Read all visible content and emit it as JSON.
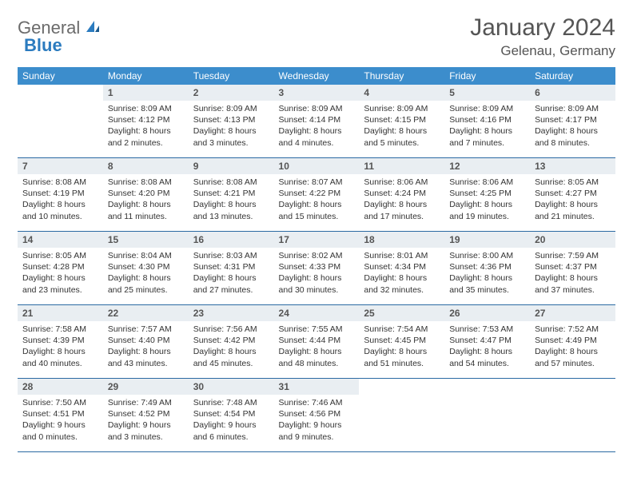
{
  "logo": {
    "general": "General",
    "blue": "Blue"
  },
  "title": "January 2024",
  "location": "Gelenau, Germany",
  "colors": {
    "header_bg": "#3c8dcc",
    "header_text": "#ffffff",
    "daynum_bg": "#e9eef2",
    "row_border": "#2b6aa3",
    "logo_gray": "#6b6b6b",
    "logo_blue": "#2b7bbf",
    "text": "#333333",
    "title_color": "#555555"
  },
  "weekdays": [
    "Sunday",
    "Monday",
    "Tuesday",
    "Wednesday",
    "Thursday",
    "Friday",
    "Saturday"
  ],
  "weeks": [
    [
      null,
      {
        "n": "1",
        "sr": "8:09 AM",
        "ss": "4:12 PM",
        "dl": "8 hours and 2 minutes."
      },
      {
        "n": "2",
        "sr": "8:09 AM",
        "ss": "4:13 PM",
        "dl": "8 hours and 3 minutes."
      },
      {
        "n": "3",
        "sr": "8:09 AM",
        "ss": "4:14 PM",
        "dl": "8 hours and 4 minutes."
      },
      {
        "n": "4",
        "sr": "8:09 AM",
        "ss": "4:15 PM",
        "dl": "8 hours and 5 minutes."
      },
      {
        "n": "5",
        "sr": "8:09 AM",
        "ss": "4:16 PM",
        "dl": "8 hours and 7 minutes."
      },
      {
        "n": "6",
        "sr": "8:09 AM",
        "ss": "4:17 PM",
        "dl": "8 hours and 8 minutes."
      }
    ],
    [
      {
        "n": "7",
        "sr": "8:08 AM",
        "ss": "4:19 PM",
        "dl": "8 hours and 10 minutes."
      },
      {
        "n": "8",
        "sr": "8:08 AM",
        "ss": "4:20 PM",
        "dl": "8 hours and 11 minutes."
      },
      {
        "n": "9",
        "sr": "8:08 AM",
        "ss": "4:21 PM",
        "dl": "8 hours and 13 minutes."
      },
      {
        "n": "10",
        "sr": "8:07 AM",
        "ss": "4:22 PM",
        "dl": "8 hours and 15 minutes."
      },
      {
        "n": "11",
        "sr": "8:06 AM",
        "ss": "4:24 PM",
        "dl": "8 hours and 17 minutes."
      },
      {
        "n": "12",
        "sr": "8:06 AM",
        "ss": "4:25 PM",
        "dl": "8 hours and 19 minutes."
      },
      {
        "n": "13",
        "sr": "8:05 AM",
        "ss": "4:27 PM",
        "dl": "8 hours and 21 minutes."
      }
    ],
    [
      {
        "n": "14",
        "sr": "8:05 AM",
        "ss": "4:28 PM",
        "dl": "8 hours and 23 minutes."
      },
      {
        "n": "15",
        "sr": "8:04 AM",
        "ss": "4:30 PM",
        "dl": "8 hours and 25 minutes."
      },
      {
        "n": "16",
        "sr": "8:03 AM",
        "ss": "4:31 PM",
        "dl": "8 hours and 27 minutes."
      },
      {
        "n": "17",
        "sr": "8:02 AM",
        "ss": "4:33 PM",
        "dl": "8 hours and 30 minutes."
      },
      {
        "n": "18",
        "sr": "8:01 AM",
        "ss": "4:34 PM",
        "dl": "8 hours and 32 minutes."
      },
      {
        "n": "19",
        "sr": "8:00 AM",
        "ss": "4:36 PM",
        "dl": "8 hours and 35 minutes."
      },
      {
        "n": "20",
        "sr": "7:59 AM",
        "ss": "4:37 PM",
        "dl": "8 hours and 37 minutes."
      }
    ],
    [
      {
        "n": "21",
        "sr": "7:58 AM",
        "ss": "4:39 PM",
        "dl": "8 hours and 40 minutes."
      },
      {
        "n": "22",
        "sr": "7:57 AM",
        "ss": "4:40 PM",
        "dl": "8 hours and 43 minutes."
      },
      {
        "n": "23",
        "sr": "7:56 AM",
        "ss": "4:42 PM",
        "dl": "8 hours and 45 minutes."
      },
      {
        "n": "24",
        "sr": "7:55 AM",
        "ss": "4:44 PM",
        "dl": "8 hours and 48 minutes."
      },
      {
        "n": "25",
        "sr": "7:54 AM",
        "ss": "4:45 PM",
        "dl": "8 hours and 51 minutes."
      },
      {
        "n": "26",
        "sr": "7:53 AM",
        "ss": "4:47 PM",
        "dl": "8 hours and 54 minutes."
      },
      {
        "n": "27",
        "sr": "7:52 AM",
        "ss": "4:49 PM",
        "dl": "8 hours and 57 minutes."
      }
    ],
    [
      {
        "n": "28",
        "sr": "7:50 AM",
        "ss": "4:51 PM",
        "dl": "9 hours and 0 minutes."
      },
      {
        "n": "29",
        "sr": "7:49 AM",
        "ss": "4:52 PM",
        "dl": "9 hours and 3 minutes."
      },
      {
        "n": "30",
        "sr": "7:48 AM",
        "ss": "4:54 PM",
        "dl": "9 hours and 6 minutes."
      },
      {
        "n": "31",
        "sr": "7:46 AM",
        "ss": "4:56 PM",
        "dl": "9 hours and 9 minutes."
      },
      null,
      null,
      null
    ]
  ],
  "labels": {
    "sunrise": "Sunrise:",
    "sunset": "Sunset:",
    "daylight": "Daylight:"
  }
}
